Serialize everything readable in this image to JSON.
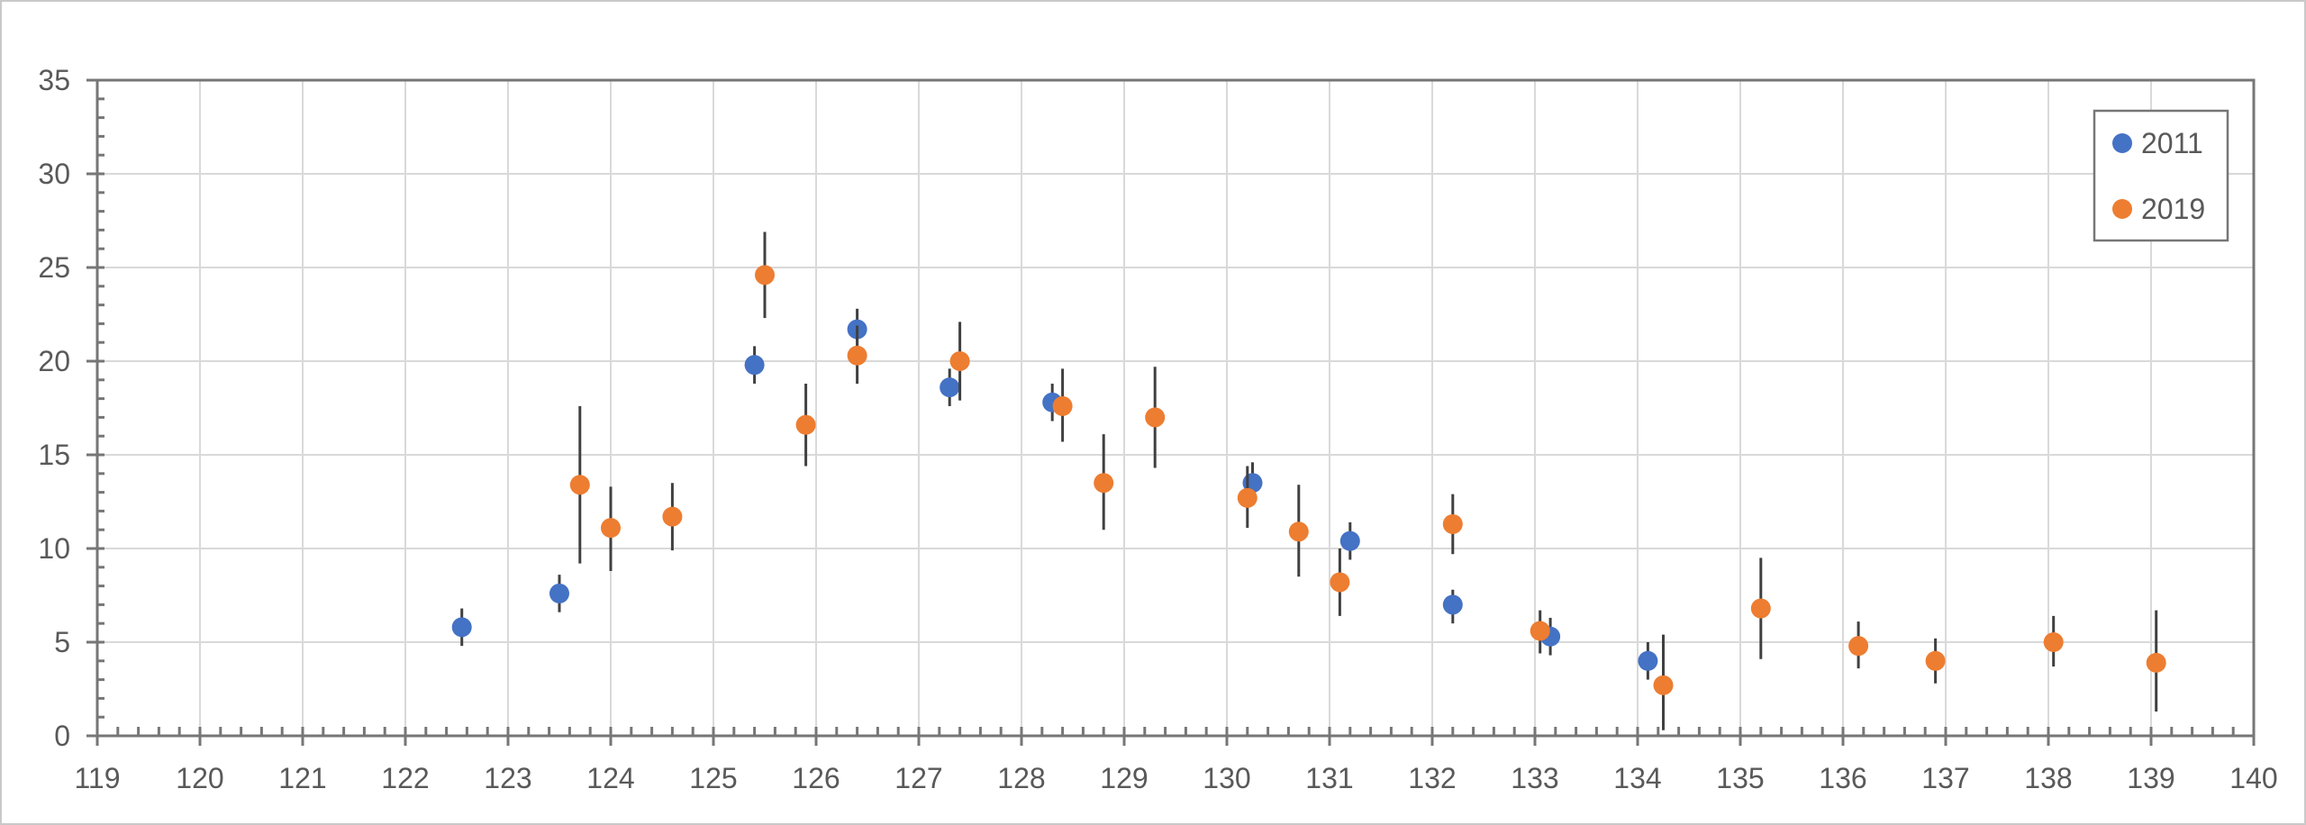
{
  "chart_data": {
    "type": "scatter",
    "title": "",
    "xlabel": "",
    "ylabel": "",
    "xlim": [
      119,
      140
    ],
    "ylim": [
      0,
      35
    ],
    "x_major_step": 1,
    "x_minor_step": 0.2,
    "y_major_step": 5,
    "y_minor_step": 1,
    "grid": true,
    "error_bars": "vertical, no caps",
    "legend_position": "top-right-inside",
    "x_tick_labels": [
      "119",
      "120",
      "121",
      "122",
      "123",
      "124",
      "125",
      "126",
      "127",
      "128",
      "129",
      "130",
      "131",
      "132",
      "133",
      "134",
      "135",
      "136",
      "137",
      "138",
      "139",
      "140"
    ],
    "y_tick_labels": [
      "0",
      "5",
      "10",
      "15",
      "20",
      "25",
      "30",
      "35"
    ],
    "series": [
      {
        "name": "2011",
        "color": "#4472C4",
        "points": [
          {
            "x": 122.55,
            "y": 5.8,
            "y_lo": 4.8,
            "y_hi": 6.8
          },
          {
            "x": 123.5,
            "y": 7.6,
            "y_lo": 6.6,
            "y_hi": 8.6
          },
          {
            "x": 125.4,
            "y": 19.8,
            "y_lo": 18.8,
            "y_hi": 20.8
          },
          {
            "x": 126.4,
            "y": 21.7,
            "y_lo": 20.7,
            "y_hi": 22.8
          },
          {
            "x": 127.3,
            "y": 18.6,
            "y_lo": 17.6,
            "y_hi": 19.6
          },
          {
            "x": 128.3,
            "y": 17.8,
            "y_lo": 16.8,
            "y_hi": 18.8
          },
          {
            "x": 130.25,
            "y": 13.5,
            "y_lo": 12.5,
            "y_hi": 14.6
          },
          {
            "x": 131.2,
            "y": 10.4,
            "y_lo": 9.4,
            "y_hi": 11.4
          },
          {
            "x": 132.2,
            "y": 7.0,
            "y_lo": 6.0,
            "y_hi": 7.8
          },
          {
            "x": 133.15,
            "y": 5.3,
            "y_lo": 4.3,
            "y_hi": 6.3
          },
          {
            "x": 134.1,
            "y": 4.0,
            "y_lo": 3.0,
            "y_hi": 5.0
          }
        ]
      },
      {
        "name": "2019",
        "color": "#ED7D31",
        "points": [
          {
            "x": 123.7,
            "y": 13.4,
            "y_lo": 9.2,
            "y_hi": 17.6
          },
          {
            "x": 124.0,
            "y": 11.1,
            "y_lo": 8.8,
            "y_hi": 13.3
          },
          {
            "x": 124.6,
            "y": 11.7,
            "y_lo": 9.9,
            "y_hi": 13.5
          },
          {
            "x": 125.5,
            "y": 24.6,
            "y_lo": 22.3,
            "y_hi": 26.9
          },
          {
            "x": 125.9,
            "y": 16.6,
            "y_lo": 14.4,
            "y_hi": 18.8
          },
          {
            "x": 126.4,
            "y": 20.3,
            "y_lo": 18.8,
            "y_hi": 21.9
          },
          {
            "x": 127.4,
            "y": 20.0,
            "y_lo": 17.9,
            "y_hi": 22.1
          },
          {
            "x": 128.4,
            "y": 17.6,
            "y_lo": 15.7,
            "y_hi": 19.6
          },
          {
            "x": 128.8,
            "y": 13.5,
            "y_lo": 11.0,
            "y_hi": 16.1
          },
          {
            "x": 129.3,
            "y": 17.0,
            "y_lo": 14.3,
            "y_hi": 19.7
          },
          {
            "x": 130.2,
            "y": 12.7,
            "y_lo": 11.1,
            "y_hi": 14.4
          },
          {
            "x": 130.7,
            "y": 10.9,
            "y_lo": 8.5,
            "y_hi": 13.4
          },
          {
            "x": 131.1,
            "y": 8.2,
            "y_lo": 6.4,
            "y_hi": 10.0
          },
          {
            "x": 132.2,
            "y": 11.3,
            "y_lo": 9.7,
            "y_hi": 12.9
          },
          {
            "x": 133.05,
            "y": 5.6,
            "y_lo": 4.4,
            "y_hi": 6.7
          },
          {
            "x": 134.25,
            "y": 2.7,
            "y_lo": 0.3,
            "y_hi": 5.4
          },
          {
            "x": 135.2,
            "y": 6.8,
            "y_lo": 4.1,
            "y_hi": 9.5
          },
          {
            "x": 136.15,
            "y": 4.8,
            "y_lo": 3.6,
            "y_hi": 6.1
          },
          {
            "x": 136.9,
            "y": 4.0,
            "y_lo": 2.8,
            "y_hi": 5.2
          },
          {
            "x": 138.05,
            "y": 5.0,
            "y_lo": 3.7,
            "y_hi": 6.4
          },
          {
            "x": 139.05,
            "y": 3.9,
            "y_lo": 1.3,
            "y_hi": 6.7
          }
        ]
      }
    ]
  },
  "legend": {
    "entries": [
      {
        "label": "2011",
        "color": "#4472C4"
      },
      {
        "label": "2019",
        "color": "#ED7D31"
      }
    ]
  },
  "colors": {
    "series_2011": "#4472C4",
    "series_2019": "#ED7D31",
    "gridline": "#D9D9D9",
    "axis": "#767676",
    "error_bar": "#404040",
    "tick_label": "#595959",
    "legend_text": "#595959",
    "canvas_border": "#C9C9C9",
    "background": "#FFFFFF"
  }
}
